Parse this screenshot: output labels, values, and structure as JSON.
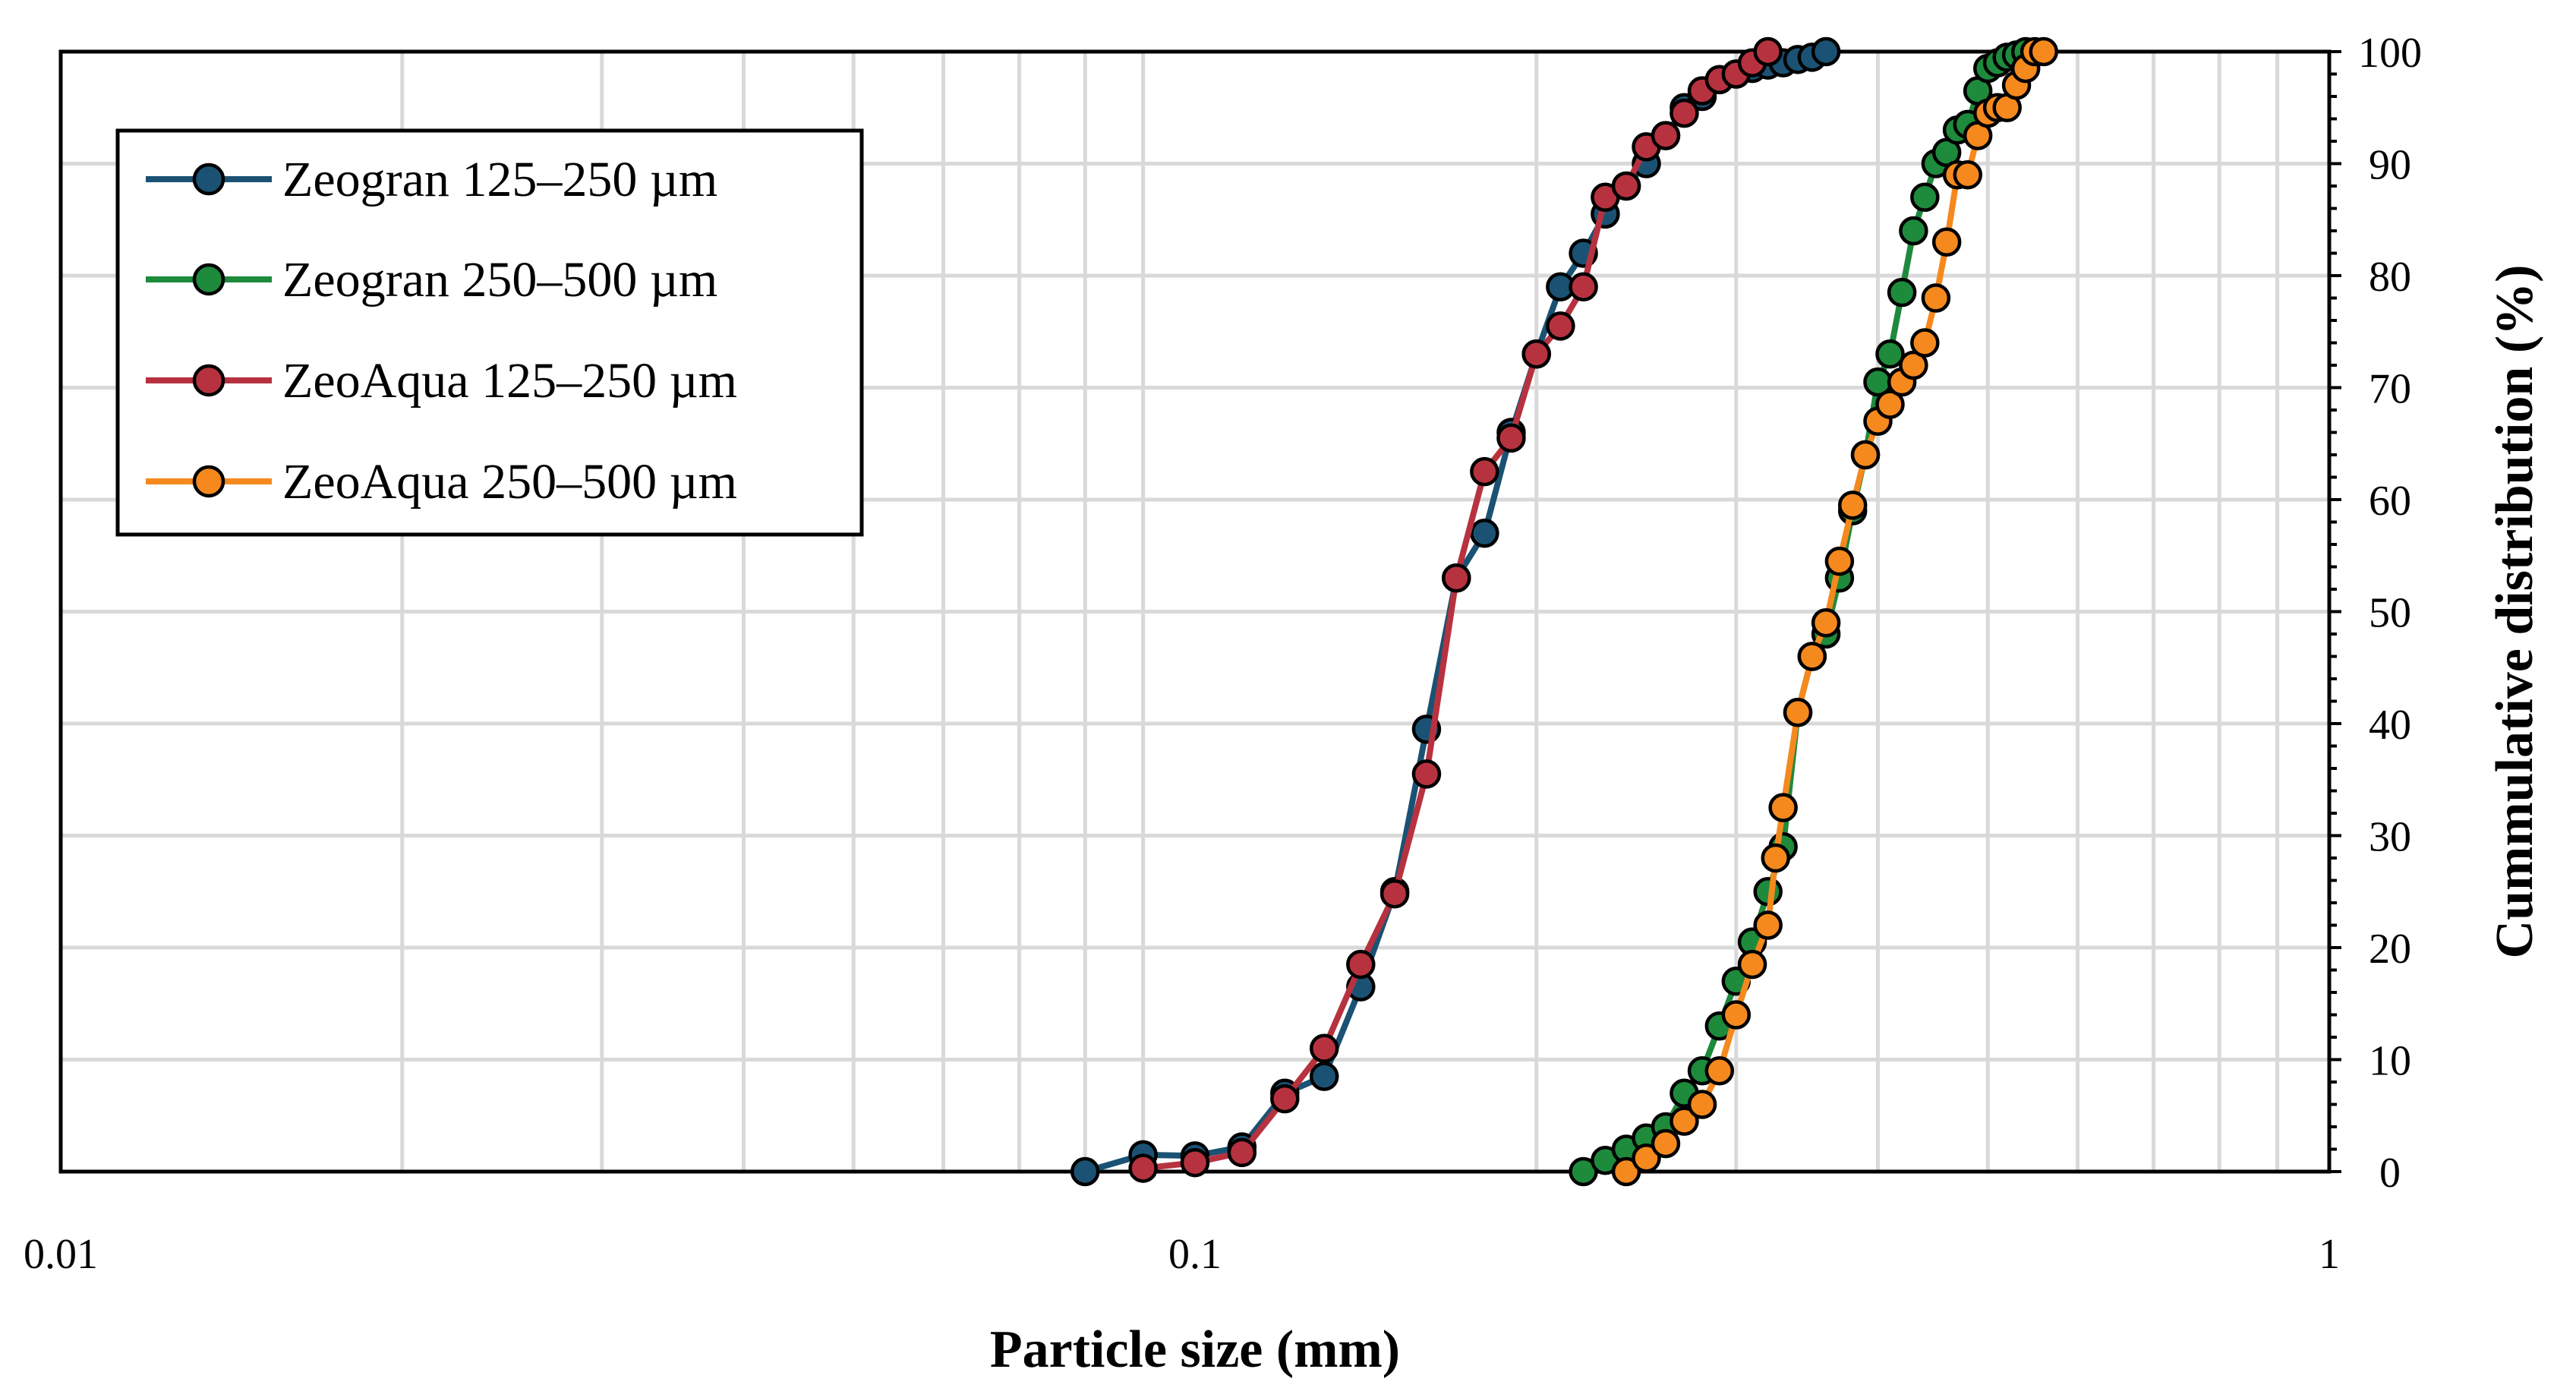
{
  "chart_data": {
    "type": "scatter",
    "xscale": "log",
    "xlim": [
      0.01,
      1
    ],
    "ylim": [
      0,
      100
    ],
    "xlabel": "Particle size (mm)",
    "ylabel": "Cummulative distribution (%)",
    "x_tick_labels": [
      "0.01",
      "0.1",
      "1"
    ],
    "y_tick_labels": [
      "0",
      "10",
      "20",
      "30",
      "40",
      "50",
      "60",
      "70",
      "80",
      "90",
      "100"
    ],
    "grid": true,
    "legend_position": "top-left",
    "series": [
      {
        "name": "Zeogran 125–250 µm",
        "color": "#1b5274",
        "points": [
          [
            0.08,
            0
          ],
          [
            0.09,
            1.5
          ],
          [
            0.1,
            1.4
          ],
          [
            0.11,
            2.2
          ],
          [
            0.12,
            7
          ],
          [
            0.13,
            8.5
          ],
          [
            0.14,
            16.5
          ],
          [
            0.15,
            25
          ],
          [
            0.16,
            39.5
          ],
          [
            0.17,
            53
          ],
          [
            0.18,
            57
          ],
          [
            0.19,
            66
          ],
          [
            0.2,
            73
          ],
          [
            0.21,
            79
          ],
          [
            0.22,
            82
          ],
          [
            0.23,
            85.5
          ],
          [
            0.24,
            88
          ],
          [
            0.25,
            90
          ],
          [
            0.26,
            92.5
          ],
          [
            0.27,
            95
          ],
          [
            0.28,
            96
          ],
          [
            0.29,
            97.5
          ],
          [
            0.3,
            98
          ],
          [
            0.31,
            98.5
          ],
          [
            0.32,
            98.8
          ],
          [
            0.33,
            99
          ],
          [
            0.34,
            99.3
          ],
          [
            0.35,
            99.5
          ],
          [
            0.36,
            100
          ]
        ]
      },
      {
        "name": "Zeogran 250–500 µm",
        "color": "#1e8a3c",
        "points": [
          [
            0.22,
            0
          ],
          [
            0.23,
            1
          ],
          [
            0.24,
            2
          ],
          [
            0.25,
            3
          ],
          [
            0.26,
            4
          ],
          [
            0.27,
            7
          ],
          [
            0.28,
            9
          ],
          [
            0.29,
            13
          ],
          [
            0.3,
            17
          ],
          [
            0.31,
            20.5
          ],
          [
            0.32,
            25
          ],
          [
            0.33,
            29
          ],
          [
            0.34,
            41
          ],
          [
            0.35,
            46
          ],
          [
            0.36,
            48
          ],
          [
            0.37,
            53
          ],
          [
            0.38,
            59
          ],
          [
            0.39,
            64
          ],
          [
            0.4,
            70.5
          ],
          [
            0.41,
            73
          ],
          [
            0.42,
            78.5
          ],
          [
            0.43,
            84
          ],
          [
            0.44,
            87
          ],
          [
            0.45,
            90
          ],
          [
            0.46,
            91
          ],
          [
            0.47,
            93
          ],
          [
            0.48,
            93.5
          ],
          [
            0.49,
            96.5
          ],
          [
            0.5,
            98.5
          ],
          [
            0.51,
            99
          ],
          [
            0.52,
            99.5
          ],
          [
            0.53,
            99.7
          ],
          [
            0.54,
            100
          ]
        ]
      },
      {
        "name": "ZeoAqua 125–250 µm",
        "color": "#b7323f",
        "points": [
          [
            0.09,
            0.3
          ],
          [
            0.1,
            0.8
          ],
          [
            0.11,
            1.7
          ],
          [
            0.12,
            6.5
          ],
          [
            0.13,
            11
          ],
          [
            0.14,
            18.5
          ],
          [
            0.15,
            24.8
          ],
          [
            0.16,
            35.5
          ],
          [
            0.17,
            53
          ],
          [
            0.18,
            62.5
          ],
          [
            0.19,
            65.5
          ],
          [
            0.2,
            73
          ],
          [
            0.21,
            75.5
          ],
          [
            0.22,
            79
          ],
          [
            0.23,
            87
          ],
          [
            0.24,
            88
          ],
          [
            0.25,
            91.5
          ],
          [
            0.26,
            92.5
          ],
          [
            0.27,
            94.5
          ],
          [
            0.28,
            96.5
          ],
          [
            0.29,
            97.5
          ],
          [
            0.3,
            98
          ],
          [
            0.31,
            99
          ],
          [
            0.32,
            100
          ]
        ]
      },
      {
        "name": "ZeoAqua 250–500 µm",
        "color": "#f5891e",
        "points": [
          [
            0.24,
            0
          ],
          [
            0.25,
            1.2
          ],
          [
            0.26,
            2.5
          ],
          [
            0.27,
            4.5
          ],
          [
            0.28,
            6
          ],
          [
            0.29,
            9
          ],
          [
            0.3,
            14
          ],
          [
            0.31,
            18.5
          ],
          [
            0.32,
            22
          ],
          [
            0.325,
            28
          ],
          [
            0.33,
            32.5
          ],
          [
            0.34,
            41
          ],
          [
            0.35,
            46
          ],
          [
            0.36,
            49
          ],
          [
            0.37,
            54.5
          ],
          [
            0.38,
            59.5
          ],
          [
            0.39,
            64
          ],
          [
            0.4,
            67
          ],
          [
            0.41,
            68.5
          ],
          [
            0.42,
            70.5
          ],
          [
            0.43,
            72
          ],
          [
            0.44,
            74
          ],
          [
            0.45,
            78
          ],
          [
            0.46,
            83
          ],
          [
            0.47,
            89
          ],
          [
            0.48,
            89
          ],
          [
            0.49,
            92.5
          ],
          [
            0.5,
            94.5
          ],
          [
            0.51,
            95
          ],
          [
            0.52,
            95
          ],
          [
            0.53,
            97
          ],
          [
            0.54,
            98.5
          ],
          [
            0.55,
            100
          ],
          [
            0.56,
            100
          ]
        ]
      }
    ]
  }
}
